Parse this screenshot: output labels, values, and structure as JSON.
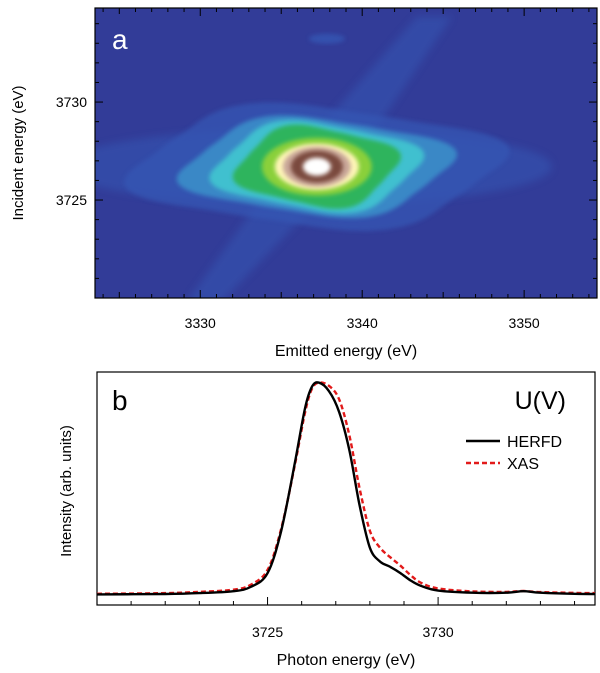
{
  "chart_data": [
    {
      "type": "heatmap",
      "panel_label": "a",
      "xlabel": "Emitted energy (eV)",
      "ylabel": "Incident energy (eV)",
      "xlim": [
        3323.5,
        3354.5
      ],
      "ylim": [
        3720,
        3734.8
      ],
      "xticks": [
        3330,
        3340,
        3350
      ],
      "yticks": [
        3725,
        3730
      ],
      "peak": {
        "emitted": 3337.2,
        "incident": 3726.7
      },
      "colorscale": [
        "#323c98",
        "#3557b4",
        "#3a8ec9",
        "#3fc0cf",
        "#2fb45d",
        "#8ad03a",
        "#fff6b8",
        "#c9a79a",
        "#7a4a3d",
        "#ffffff"
      ]
    },
    {
      "type": "line",
      "panel_label": "b",
      "annotation": "U(V)",
      "xlabel": "Photon energy (eV)",
      "ylabel": "Intensity (arb. units)",
      "xlim": [
        3720,
        3734.6
      ],
      "ylim": [
        -0.05,
        1.05
      ],
      "xticks": [
        3725,
        3730
      ],
      "legend_position": "right",
      "series": [
        {
          "name": "HERFD",
          "color": "#000000",
          "dash": "solid",
          "x": [
            3720,
            3722,
            3723,
            3724,
            3724.5,
            3725,
            3725.4,
            3725.8,
            3726.1,
            3726.3,
            3726.5,
            3726.8,
            3727.1,
            3727.4,
            3727.7,
            3728.0,
            3728.3,
            3728.6,
            3728.9,
            3729.2,
            3729.5,
            3730.0,
            3731.0,
            3732.0,
            3732.5,
            3733.0,
            3734.0,
            3734.6
          ],
          "y": [
            0.0,
            0.002,
            0.006,
            0.015,
            0.035,
            0.1,
            0.3,
            0.62,
            0.88,
            0.98,
            1.0,
            0.96,
            0.86,
            0.68,
            0.42,
            0.22,
            0.155,
            0.13,
            0.1,
            0.065,
            0.04,
            0.018,
            0.008,
            0.008,
            0.015,
            0.008,
            0.003,
            0.002
          ]
        },
        {
          "name": "XAS",
          "color": "#e21a1a",
          "dash": "dashed",
          "x": [
            3720,
            3722,
            3723,
            3724,
            3724.5,
            3725,
            3725.4,
            3725.8,
            3726.1,
            3726.3,
            3726.5,
            3726.8,
            3727.1,
            3727.4,
            3727.7,
            3728.0,
            3728.3,
            3728.6,
            3728.9,
            3729.2,
            3729.5,
            3730.0,
            3731.0,
            3732.0,
            3732.5,
            3733.0,
            3734.0,
            3734.6
          ],
          "y": [
            0.003,
            0.006,
            0.012,
            0.022,
            0.045,
            0.115,
            0.31,
            0.61,
            0.86,
            0.97,
            1.0,
            0.985,
            0.92,
            0.75,
            0.5,
            0.3,
            0.22,
            0.175,
            0.135,
            0.09,
            0.055,
            0.028,
            0.014,
            0.012,
            0.016,
            0.011,
            0.007,
            0.006
          ]
        }
      ]
    }
  ]
}
